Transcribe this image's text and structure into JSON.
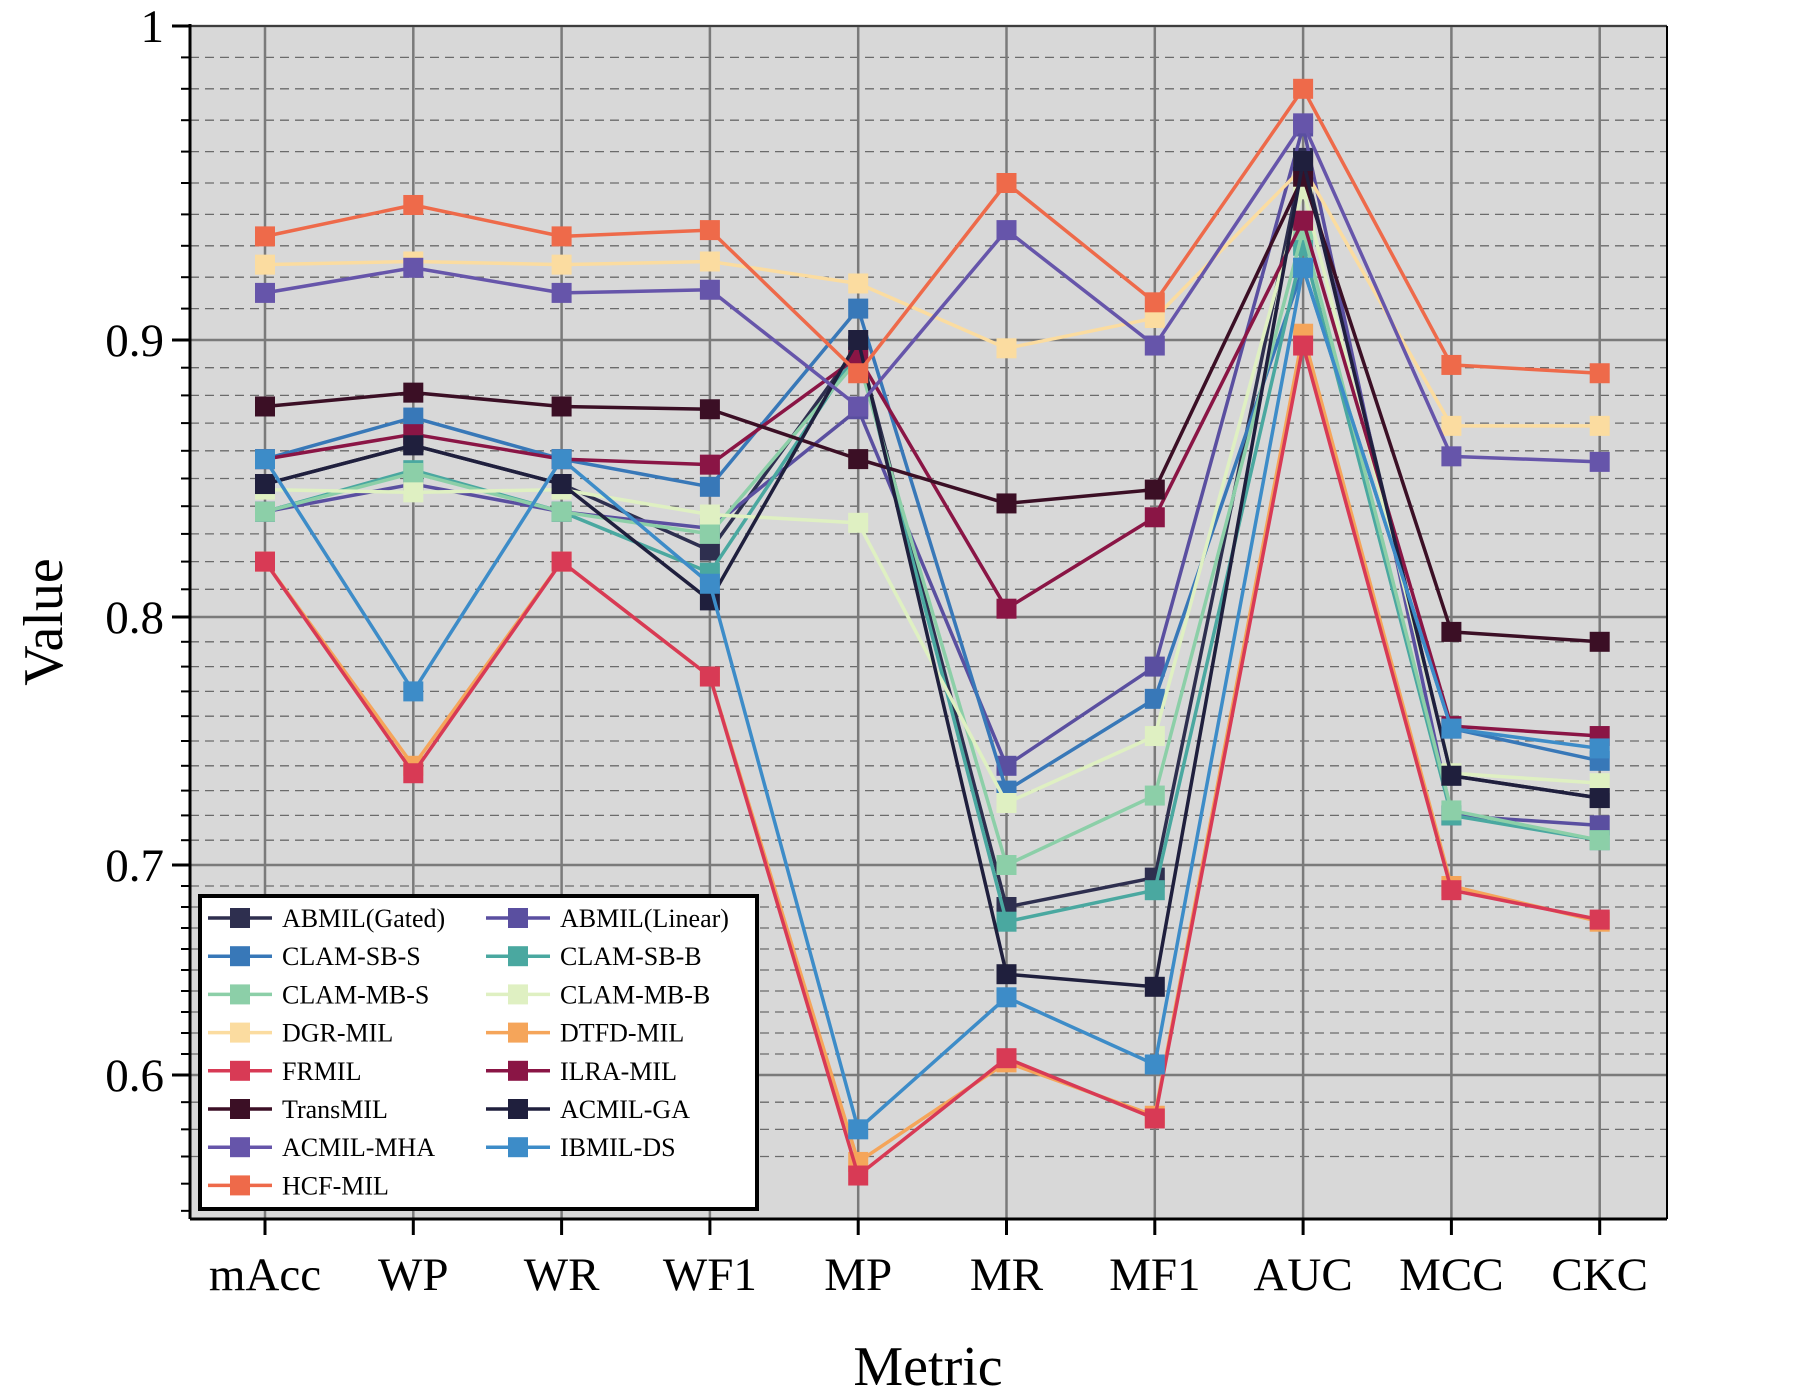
{
  "chart_data": {
    "type": "line",
    "title": "",
    "xlabel": "Metric",
    "ylabel": "Value",
    "ylim": [
      0.547,
      1.0
    ],
    "y_scale": "nonlinear (0.6–0.7 band is compressed relative to 0.7–1)",
    "grid": true,
    "plot_background": "#d8d8d8",
    "legend_position": "bottom-left",
    "legend_columns": 2,
    "categories": [
      "mAcc",
      "WP",
      "WR",
      "WF1",
      "MP",
      "MR",
      "MF1",
      "AUC",
      "MCC",
      "CKC"
    ],
    "y_ticks": [
      {
        "value": 0.6,
        "label": "0.6"
      },
      {
        "value": 0.7,
        "label": "0.7"
      },
      {
        "value": 0.8,
        "label": "0.8"
      },
      {
        "value": 0.9,
        "label": "0.9"
      },
      {
        "value": 1.0,
        "label": "1"
      }
    ],
    "series": [
      {
        "name": "ABMIL(Gated)",
        "color": "#2e2f4f",
        "values": [
          0.848,
          0.862,
          0.848,
          0.824,
          0.898,
          0.68,
          0.694,
          0.958,
          0.736,
          0.727
        ]
      },
      {
        "name": "ABMIL(Linear)",
        "color": "#5a4fa0",
        "values": [
          0.838,
          0.848,
          0.838,
          0.832,
          0.875,
          0.74,
          0.78,
          0.968,
          0.72,
          0.716
        ]
      },
      {
        "name": "CLAM-SB-S",
        "color": "#3878b8",
        "values": [
          0.857,
          0.872,
          0.857,
          0.847,
          0.91,
          0.73,
          0.767,
          0.923,
          0.755,
          0.742
        ]
      },
      {
        "name": "CLAM-SB-B",
        "color": "#4aa8a0",
        "values": [
          0.838,
          0.853,
          0.838,
          0.816,
          0.896,
          0.673,
          0.688,
          0.93,
          0.72,
          0.71
        ]
      },
      {
        "name": "CLAM-MB-S",
        "color": "#8ccfa8",
        "values": [
          0.838,
          0.852,
          0.838,
          0.83,
          0.893,
          0.7,
          0.728,
          0.935,
          0.722,
          0.71
        ]
      },
      {
        "name": "CLAM-MB-B",
        "color": "#dff0c2",
        "values": [
          0.846,
          0.845,
          0.846,
          0.837,
          0.834,
          0.725,
          0.752,
          0.948,
          0.737,
          0.733
        ]
      },
      {
        "name": "DGR-MIL",
        "color": "#fbdca0",
        "values": [
          0.924,
          0.925,
          0.924,
          0.925,
          0.918,
          0.897,
          0.907,
          0.955,
          0.869,
          0.869
        ]
      },
      {
        "name": "DTFD-MIL",
        "color": "#f5a55a",
        "values": [
          0.82,
          0.74,
          0.82,
          0.776,
          0.568,
          0.606,
          0.585,
          0.902,
          0.69,
          0.673
        ]
      },
      {
        "name": "FRMIL",
        "color": "#d83a55",
        "values": [
          0.82,
          0.737,
          0.82,
          0.776,
          0.563,
          0.608,
          0.584,
          0.898,
          0.688,
          0.674
        ]
      },
      {
        "name": "ILRA-MIL",
        "color": "#8a1545",
        "values": [
          0.857,
          0.866,
          0.857,
          0.855,
          0.894,
          0.803,
          0.836,
          0.938,
          0.756,
          0.752
        ]
      },
      {
        "name": "TransMIL",
        "color": "#3b0f25",
        "values": [
          0.876,
          0.881,
          0.876,
          0.875,
          0.857,
          0.841,
          0.846,
          0.952,
          0.794,
          0.79
        ]
      },
      {
        "name": "ACMIL-GA",
        "color": "#1f1f3d",
        "values": [
          0.848,
          0.862,
          0.848,
          0.806,
          0.9,
          0.648,
          0.642,
          0.957,
          0.736,
          0.727
        ]
      },
      {
        "name": "ACMIL-MHA",
        "color": "#6655aa",
        "values": [
          0.915,
          0.923,
          0.915,
          0.916,
          0.876,
          0.935,
          0.898,
          0.969,
          0.858,
          0.856
        ]
      },
      {
        "name": "IBMIL-DS",
        "color": "#3d8cc8",
        "values": [
          0.857,
          0.77,
          0.857,
          0.812,
          0.58,
          0.637,
          0.605,
          0.923,
          0.755,
          0.747
        ]
      },
      {
        "name": "HCF-MIL",
        "color": "#ee6a4a",
        "values": [
          0.933,
          0.943,
          0.933,
          0.935,
          0.888,
          0.95,
          0.912,
          0.98,
          0.891,
          0.888
        ]
      }
    ]
  }
}
